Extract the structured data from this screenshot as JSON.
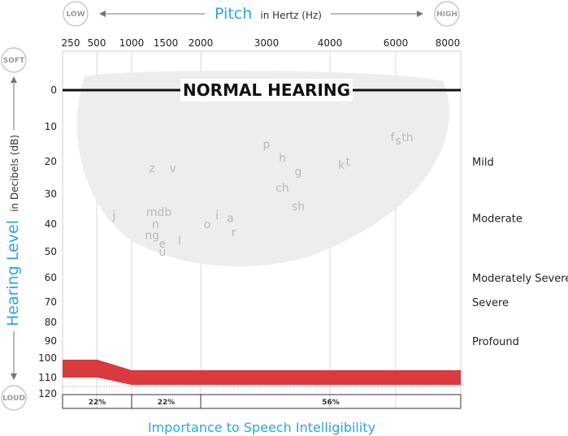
{
  "chart_data": {
    "type": "scatter",
    "title": {
      "main": "Pitch",
      "sub": "in Hertz (Hz)"
    },
    "pitch_scale": {
      "low": "LOW",
      "high": "HIGH"
    },
    "level_scale": {
      "soft": "SOFT",
      "loud": "LOUD"
    },
    "x_ticks": [
      "250",
      "500",
      "1000",
      "1500",
      "2000",
      "3000",
      "4000",
      "6000",
      "8000"
    ],
    "y_ticks": [
      "0",
      "10",
      "20",
      "30",
      "40",
      "50",
      "60",
      "70",
      "80",
      "90",
      "100",
      "110",
      "120"
    ],
    "ylabel": {
      "main": "Hearing Level",
      "sub": "in Decibels (dB)"
    },
    "xlabel": "Importance to Speech Intelligibility",
    "banner": "NORMAL HEARING",
    "severity_labels": [
      {
        "label": "Mild",
        "db": 20
      },
      {
        "label": "Moderate",
        "db": 38
      },
      {
        "label": "Moderately Severe",
        "db": 60
      },
      {
        "label": "Severe",
        "db": 70
      },
      {
        "label": "Profound",
        "db": 90
      }
    ],
    "speech_sounds": [
      {
        "text": "z",
        "hz": 1300,
        "db": 22
      },
      {
        "text": "v",
        "hz": 1600,
        "db": 22
      },
      {
        "text": "j",
        "hz": 750,
        "db": 37
      },
      {
        "text": "mdb",
        "hz": 1400,
        "db": 36
      },
      {
        "text": "n",
        "hz": 1350,
        "db": 40
      },
      {
        "text": "ng",
        "hz": 1300,
        "db": 44
      },
      {
        "text": "e",
        "hz": 1450,
        "db": 47
      },
      {
        "text": "l",
        "hz": 1700,
        "db": 46
      },
      {
        "text": "u",
        "hz": 1450,
        "db": 50
      },
      {
        "text": "i",
        "hz": 2250,
        "db": 37
      },
      {
        "text": "a",
        "hz": 2450,
        "db": 38
      },
      {
        "text": "o",
        "hz": 2100,
        "db": 40
      },
      {
        "text": "r",
        "hz": 2500,
        "db": 43
      },
      {
        "text": "p",
        "hz": 3000,
        "db": 15
      },
      {
        "text": "h",
        "hz": 3250,
        "db": 19
      },
      {
        "text": "g",
        "hz": 3500,
        "db": 23
      },
      {
        "text": "ch",
        "hz": 3250,
        "db": 28
      },
      {
        "text": "sh",
        "hz": 3500,
        "db": 34
      },
      {
        "text": "k",
        "hz": 4350,
        "db": 21
      },
      {
        "text": "t",
        "hz": 4550,
        "db": 20
      },
      {
        "text": "f",
        "hz": 5900,
        "db": 13
      },
      {
        "text": "s",
        "hz": 6100,
        "db": 14
      },
      {
        "text": "th",
        "hz": 6450,
        "db": 13
      }
    ],
    "speech_importance": [
      {
        "label": "22%"
      },
      {
        "label": "22%"
      },
      {
        "label": "56%"
      }
    ],
    "colors": {
      "accent": "#2aa6dc",
      "band": "#d93a3e",
      "banana": "#ededed"
    }
  }
}
